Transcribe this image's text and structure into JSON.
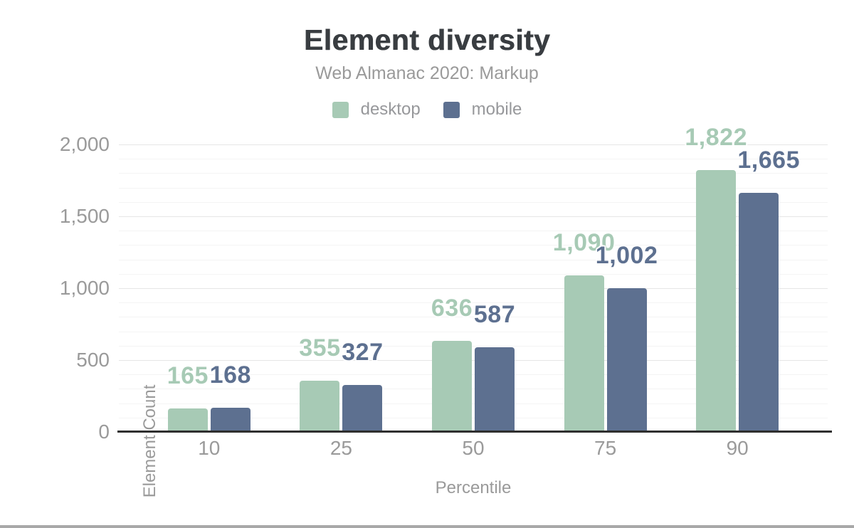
{
  "header": {
    "title": "Element diversity",
    "subtitle": "Web Almanac 2020: Markup"
  },
  "legend": {
    "items": [
      {
        "label": "desktop",
        "color": "#a7cab5"
      },
      {
        "label": "mobile",
        "color": "#5d7090"
      }
    ]
  },
  "chart_data": {
    "type": "bar",
    "title": "Element diversity",
    "subtitle": "Web Almanac 2020: Markup",
    "categories": [
      "10",
      "25",
      "50",
      "75",
      "90"
    ],
    "series": [
      {
        "name": "desktop",
        "color": "#a7cab5",
        "values": [
          165,
          355,
          636,
          1090,
          1822
        ],
        "labels": [
          "165",
          "355",
          "636",
          "1,090",
          "1,822"
        ]
      },
      {
        "name": "mobile",
        "color": "#5d7090",
        "values": [
          168,
          327,
          587,
          1002,
          1665
        ],
        "labels": [
          "168",
          "327",
          "587",
          "1,002",
          "1,665"
        ]
      }
    ],
    "xlabel": "Percentile",
    "ylabel": "Element Count",
    "ylim": [
      0,
      2000
    ],
    "y_tick_values": [
      0,
      500,
      1000,
      1500,
      2000
    ],
    "y_tick_labels": [
      "0",
      "500",
      "1,000",
      "1,500",
      "2,000"
    ],
    "ytick_step": 500,
    "yminor_step": 100,
    "grid": true,
    "legend_position": "top",
    "value_labels_shown": true
  },
  "colors": {
    "title_text": "#393d41",
    "muted_text": "#9a9a9a",
    "axis_line": "#2f2f2f",
    "grid_major": "#e6e6e6",
    "grid_minor": "#f4f4f4",
    "footer_line": "#a8a8a8"
  }
}
